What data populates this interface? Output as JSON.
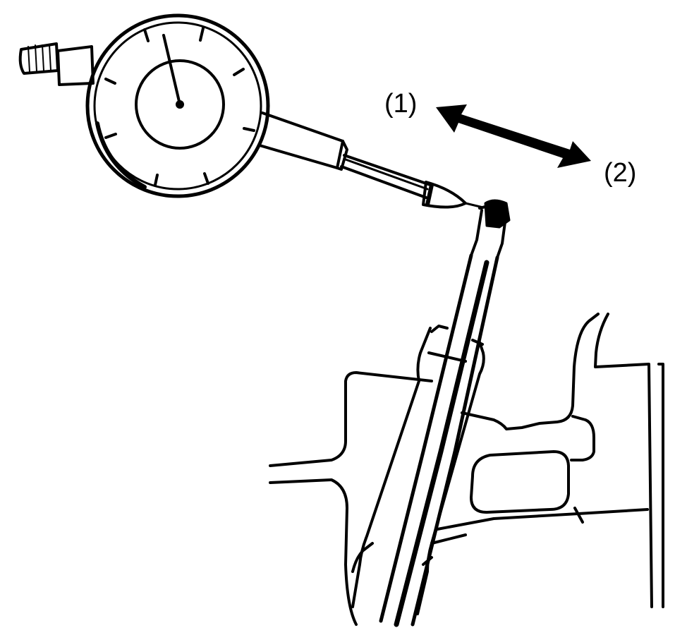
{
  "labels": {
    "direction_1": "(1)",
    "direction_2": "(2)"
  },
  "colors": {
    "ink": "#000000",
    "paper": "#ffffff"
  },
  "icons": {
    "gauge": "dial-gauge-icon",
    "arrow": "double-arrow-icon"
  }
}
